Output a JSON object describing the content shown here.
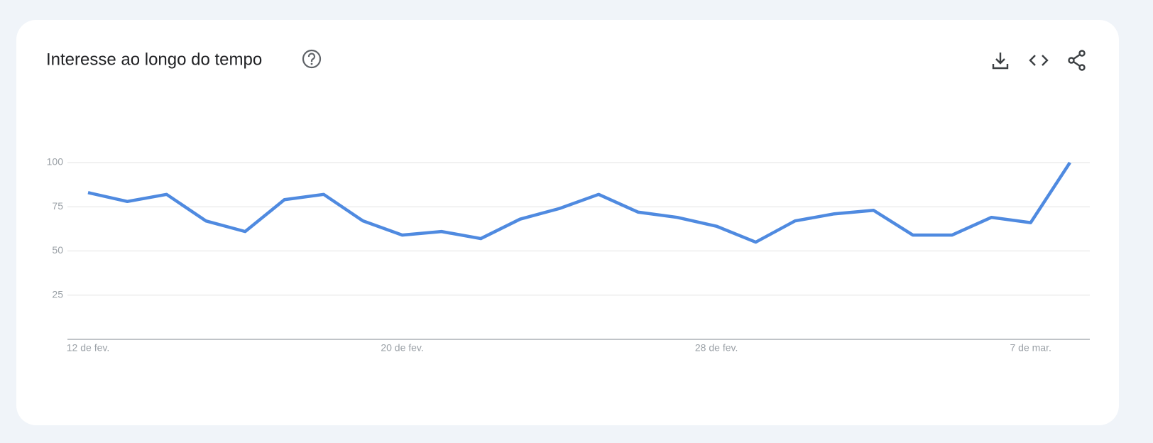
{
  "chart_data": {
    "type": "line",
    "title": "Interesse ao longo do tempo",
    "categories": [
      "12 de fev.",
      null,
      null,
      null,
      null,
      null,
      null,
      null,
      "20 de fev.",
      null,
      null,
      null,
      null,
      null,
      null,
      null,
      "28 de fev.",
      null,
      null,
      null,
      null,
      null,
      null,
      null,
      "7 de mar.",
      null
    ],
    "values": [
      83,
      78,
      82,
      67,
      61,
      79,
      82,
      67,
      59,
      61,
      57,
      68,
      74,
      82,
      72,
      69,
      64,
      55,
      67,
      71,
      73,
      59,
      59,
      69,
      66,
      100
    ],
    "color": "#4f8ae0",
    "ylim": [
      0,
      100
    ],
    "yticks": [
      25,
      50,
      75,
      100
    ],
    "grid": true
  }
}
